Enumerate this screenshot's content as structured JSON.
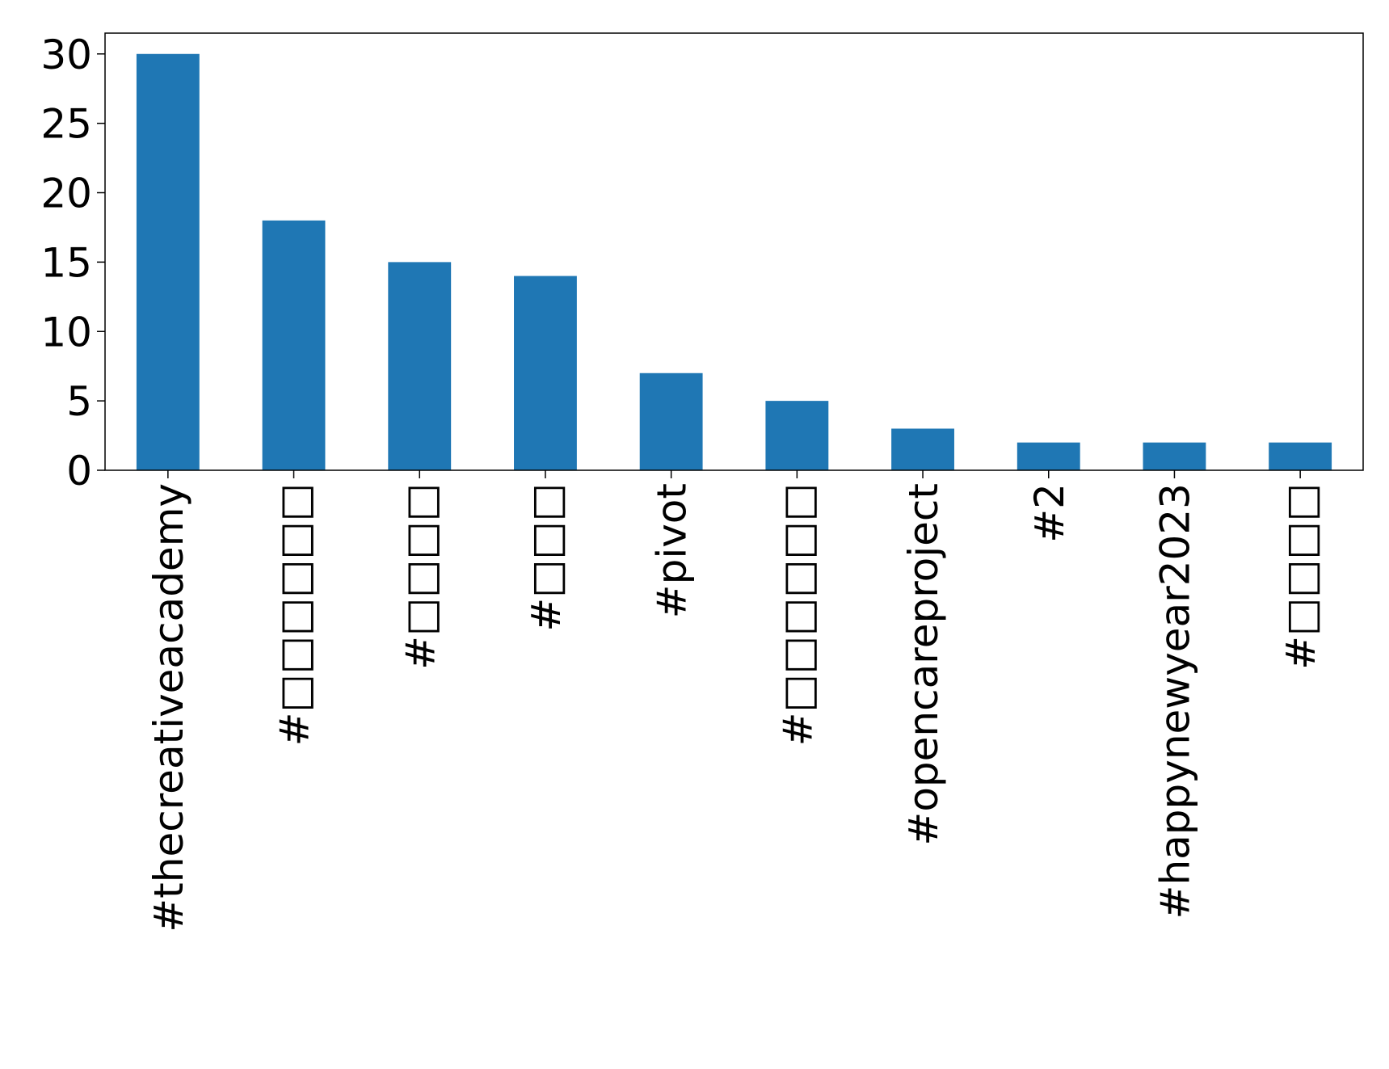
{
  "chart_data": {
    "type": "bar",
    "categories": [
      "#thecreativeacademy",
      "#□□□□□□",
      "#□□□□",
      "#□□□",
      "#pivot",
      "#□□□□□□",
      "#opencareproject",
      "#2",
      "#happynewyear2023",
      "#□□□□"
    ],
    "values": [
      30,
      18,
      15,
      14,
      7,
      5,
      3,
      2,
      2,
      2
    ],
    "color": "#1f77b4",
    "ylim": [
      0,
      31.5
    ],
    "yticks": [
      0,
      5,
      10,
      15,
      20,
      25,
      30
    ],
    "grid": false
  }
}
